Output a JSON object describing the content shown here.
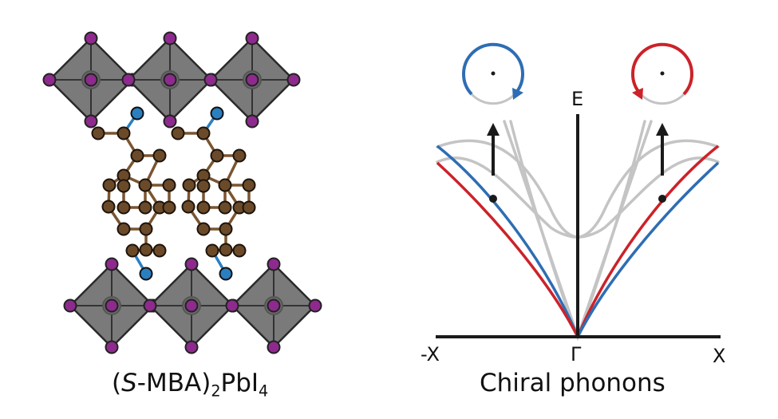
{
  "left_panel": {
    "caption": {
      "open_paren": "(",
      "chirality": "S",
      "molecule": "-MBA)",
      "sub_2": "2",
      "formula": "PbI",
      "sub_4": "4"
    }
  },
  "right_panel": {
    "caption": "Chiral phonons",
    "axis_labels": {
      "energy": "E",
      "left": "-X",
      "center": "Γ",
      "right": "X"
    }
  },
  "colors": {
    "octahedron_fill": "#7a7a7a",
    "octahedron_edge": "#2a2a2a",
    "iodine": "#8e2a8e",
    "lead": "#5a5a5a",
    "carbon": "#6b4a2a",
    "bond": "#7a5530",
    "nitrogen": "#2a7fc0",
    "blue_branch": "#2e6db4",
    "red_branch": "#cc2229",
    "gray_branch": "#c4c4c4",
    "axis": "#1a1a1a"
  }
}
